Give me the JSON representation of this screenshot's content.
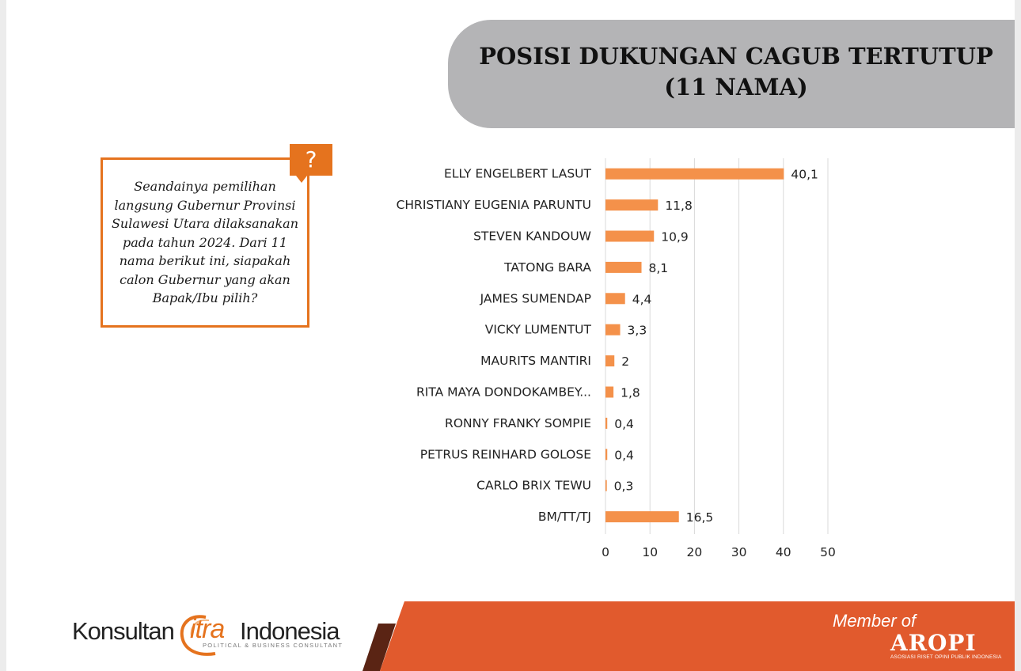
{
  "title": {
    "line1": "POSISI DUKUNGAN CAGUB TERTUTUP",
    "line2": "(11 NAMA)"
  },
  "question": {
    "badge": "?",
    "text": "Seandainya pemilihan langsung Gubernur Provinsi Sulawesi Utara dilaksanakan pada tahun 2024. Dari 11 nama berikut ini, siapakah calon Gubernur yang akan Bapak/Ibu pilih?"
  },
  "chart_data": {
    "type": "bar",
    "orientation": "horizontal",
    "categories": [
      "ELLY ENGELBERT LASUT",
      "CHRISTIANY EUGENIA PARUNTU",
      "STEVEN KANDOUW",
      "TATONG BARA",
      "JAMES SUMENDAP",
      "VICKY LUMENTUT",
      "MAURITS MANTIRI",
      "RITA MAYA DONDOKAMBEY...",
      "RONNY FRANKY SOMPIE",
      "PETRUS REINHARD GOLOSE",
      "CARLO BRIX TEWU",
      "BM/TT/TJ"
    ],
    "values": [
      40.1,
      11.8,
      10.9,
      8.1,
      4.4,
      3.3,
      2,
      1.8,
      0.4,
      0.4,
      0.3,
      16.5
    ],
    "value_labels": [
      "40,1",
      "11,8",
      "10,9",
      "8,1",
      "4,4",
      "3,3",
      "2",
      "1,8",
      "0,4",
      "0,4",
      "0,3",
      "16,5"
    ],
    "xlim": [
      0,
      50
    ],
    "ticks": [
      0,
      10,
      20,
      30,
      40,
      50
    ],
    "tick_labels": [
      "0",
      "10",
      "20",
      "30",
      "40",
      "50"
    ],
    "grid": true,
    "bar_color": "#f4914a",
    "grid_color": "#d9d9d9",
    "legend": "none",
    "title": "",
    "xlabel": "",
    "ylabel": ""
  },
  "footer": {
    "logo_konsultan": "Konsultan",
    "logo_citra": "itra",
    "logo_indonesia": "Indonesia",
    "logo_tagline": "POLITICAL & BUSINESS CONSULTANT",
    "member_of": "Member of",
    "aropi": "AROPI",
    "aropi_tagline": "ASOSIASI RISET OPINI PUBLIK INDONESIA",
    "band_color": "#e15a2d",
    "accent_color": "#e5731e"
  }
}
